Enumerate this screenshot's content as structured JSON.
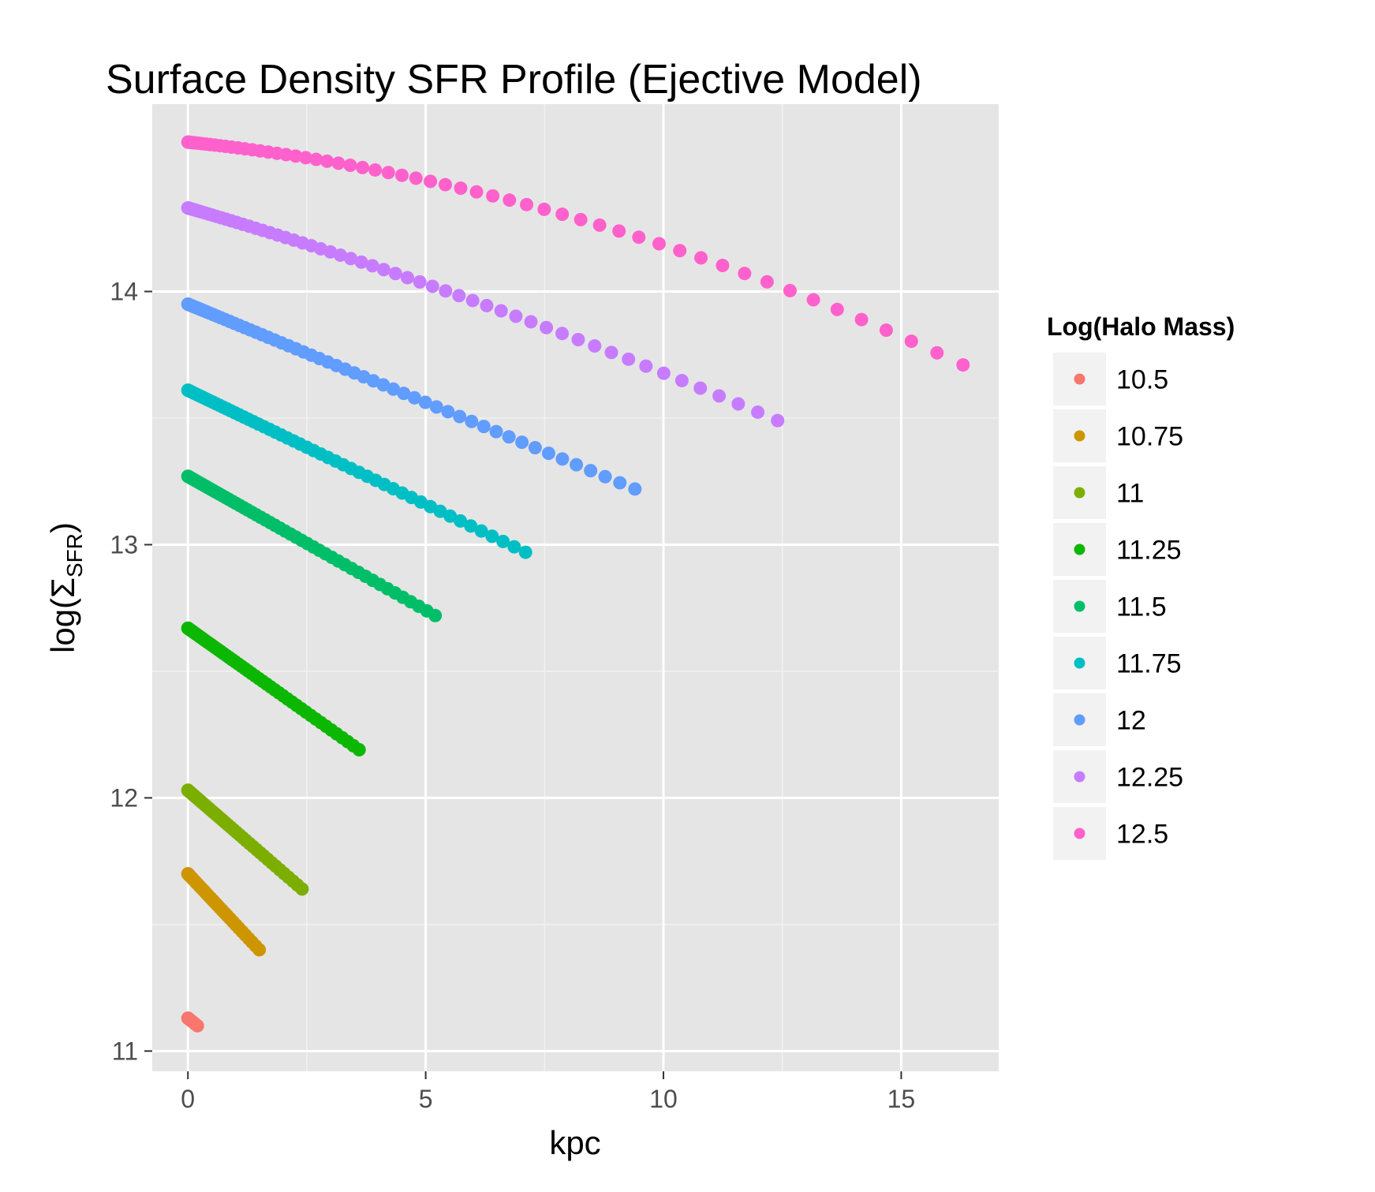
{
  "chart_data": {
    "type": "scatter",
    "title": "Surface Density SFR Profile (Ejective Model)",
    "xlabel": "kpc",
    "ylabel": {
      "prefix": "log(",
      "symbol": "Σ",
      "subscript": "SFR",
      "suffix": ")"
    },
    "xlim": [
      -0.75,
      17.05
    ],
    "ylim": [
      10.92,
      14.74
    ],
    "x_ticks": [
      0,
      5,
      10,
      15
    ],
    "y_ticks": [
      11,
      12,
      13,
      14
    ],
    "x_tick_labels": [
      "0",
      "5",
      "10",
      "15"
    ],
    "y_tick_labels": [
      "11",
      "12",
      "13",
      "14"
    ],
    "grid": true,
    "legend": {
      "title": "Log(Halo Mass)",
      "position": "right"
    },
    "series": [
      {
        "name": "10.5",
        "color": "#F8766D",
        "x_max": 0.2,
        "y0": 11.13,
        "y1": 11.1,
        "n": 10,
        "curve": 0.0
      },
      {
        "name": "10.75",
        "color": "#CD9600",
        "x_max": 1.5,
        "y0": 11.7,
        "y1": 11.4,
        "n": 40,
        "curve": 0.0
      },
      {
        "name": "11",
        "color": "#7CAE00",
        "x_max": 2.4,
        "y0": 12.03,
        "y1": 11.64,
        "n": 50,
        "curve": 0.0
      },
      {
        "name": "11.25",
        "color": "#0CB702",
        "x_max": 3.6,
        "y0": 12.67,
        "y1": 12.19,
        "n": 60,
        "curve": 0.0
      },
      {
        "name": "11.5",
        "color": "#00BE67",
        "x_max": 5.2,
        "y0": 13.27,
        "y1": 12.72,
        "n": 60,
        "curve": 0.0
      },
      {
        "name": "11.75",
        "color": "#00BFC4",
        "x_max": 7.1,
        "y0": 13.61,
        "y1": 12.97,
        "n": 60,
        "curve": 0.0
      },
      {
        "name": "12",
        "color": "#619CFF",
        "x_max": 9.4,
        "y0": 13.95,
        "y1": 13.22,
        "n": 60,
        "curve": 0.0
      },
      {
        "name": "12.25",
        "color": "#C77CFF",
        "x_max": 12.4,
        "y0": 14.33,
        "y1": 13.49,
        "n": 60,
        "curve": 0.08
      },
      {
        "name": "12.5",
        "color": "#FF61CC",
        "x_max": 16.3,
        "y0": 14.59,
        "y1": 13.71,
        "n": 60,
        "curve": 0.28
      }
    ]
  },
  "colors": {
    "panel_background": "#E5E5E5",
    "grid_major": "#FFFFFF",
    "grid_minor": "#F2F2F2",
    "legend_key_background": "#F2F2F2",
    "tick_color": "#333333"
  }
}
